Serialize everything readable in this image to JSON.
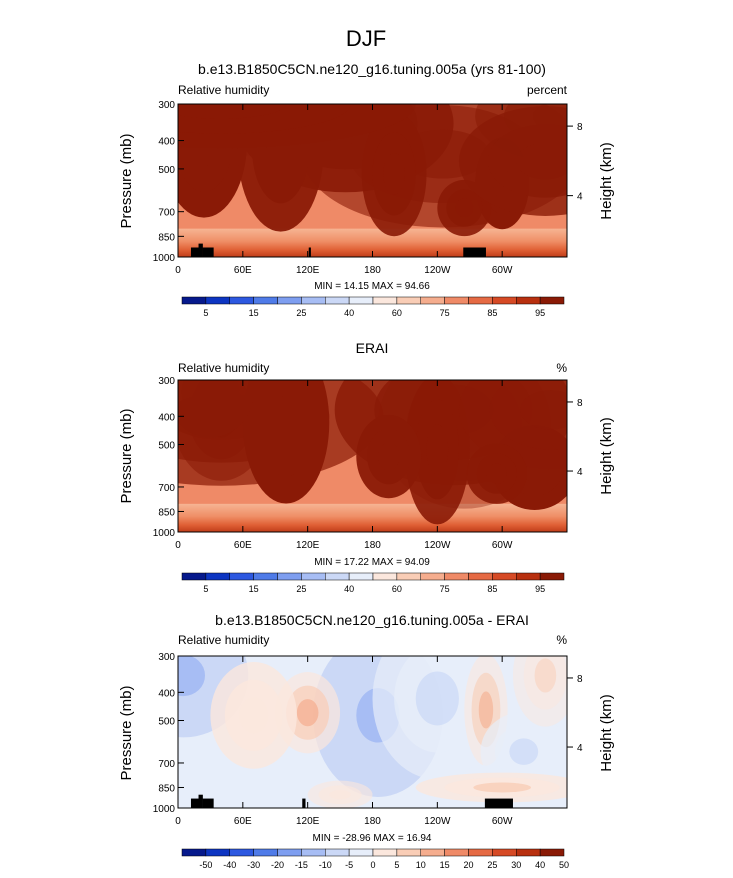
{
  "figure": {
    "title": "DJF"
  },
  "chart_data": [
    {
      "type": "heatmap",
      "title": "b.e13.B1850C5CN.ne120_g16.tuning.005a (yrs 81-100)",
      "left_label": "Relative humidity",
      "right_label": "percent",
      "ylabel": "Pressure (mb)",
      "ylabel_right": "Height (km)",
      "x_ticks": [
        "0",
        "60E",
        "120E",
        "180",
        "120W",
        "60W"
      ],
      "x_tick_positions": [
        0,
        60,
        120,
        180,
        240,
        300
      ],
      "xlim": [
        0,
        360
      ],
      "y_ticks": [
        "300",
        "400",
        "500",
        "700",
        "850",
        "1000"
      ],
      "y_tick_values": [
        300,
        400,
        500,
        700,
        850,
        1000
      ],
      "ylim": [
        300,
        1000
      ],
      "y_scale": "log",
      "right_ticks": [
        "8",
        "4"
      ],
      "right_tick_pressures": [
        357,
        617
      ],
      "stats": "MIN = 14.15  MAX = 94.66",
      "colorbar": {
        "labels": [
          "5",
          "15",
          "25",
          "40",
          "60",
          "75",
          "85",
          "95"
        ],
        "colors": [
          "#06198c",
          "#0d35c2",
          "#2d58e0",
          "#4f7be8",
          "#7e9ef0",
          "#a7bdf4",
          "#cbd8f6",
          "#e7eefa",
          "#fbe7dd",
          "#f9cdb6",
          "#f5ad8e",
          "#ef8a67",
          "#e56a44",
          "#d64a25",
          "#b8300f",
          "#8a1a06"
        ],
        "levels": [
          5,
          10,
          15,
          20,
          25,
          30,
          40,
          50,
          60,
          65,
          70,
          75,
          80,
          85,
          90,
          95
        ]
      },
      "terrain": [
        [
          12,
          23,
          928
        ],
        [
          19,
          23,
          900
        ],
        [
          23,
          33,
          928
        ],
        [
          121,
          123,
          928
        ],
        [
          264,
          285,
          928
        ]
      ],
      "terrain_levels": [
        928,
        900
      ],
      "field_base": 72,
      "lower_gradient": [
        [
          "#f6b493",
          0
        ],
        [
          "#ef8e66",
          0.45
        ],
        [
          "#e06035",
          0.75
        ],
        [
          "#c03d19",
          1
        ]
      ],
      "blobs": [
        [
          60,
          300,
          420,
          70,
          300,
          36
        ],
        [
          155,
          350,
          430,
          100,
          330,
          90
        ],
        [
          245,
          445,
          360,
          130,
          250,
          60
        ],
        [
          312,
          210,
          500,
          50,
          220,
          70
        ],
        [
          24,
          400,
          500,
          40,
          300,
          100
        ],
        [
          95,
          420,
          660,
          40,
          330,
          95
        ],
        [
          200,
          520,
          780,
          30,
          250,
          90
        ],
        [
          300,
          560,
          740,
          25,
          200,
          110
        ],
        [
          355,
          330,
          520,
          80,
          200,
          56
        ],
        [
          40,
          300,
          350,
          180,
          250,
          70
        ],
        [
          265,
          680,
          590,
          25,
          150,
          90
        ],
        [
          340,
          470,
          420,
          80,
          200,
          80
        ]
      ]
    },
    {
      "type": "heatmap",
      "title": "ERAI",
      "left_label": "Relative humidity",
      "right_label": "%",
      "ylabel": "Pressure (mb)",
      "ylabel_right": "Height (km)",
      "x_ticks": [
        "0",
        "60E",
        "120E",
        "180",
        "120W",
        "60W"
      ],
      "x_tick_positions": [
        0,
        60,
        120,
        180,
        240,
        300
      ],
      "xlim": [
        0,
        360
      ],
      "y_ticks": [
        "300",
        "400",
        "500",
        "700",
        "850",
        "1000"
      ],
      "y_tick_values": [
        300,
        400,
        500,
        700,
        850,
        1000
      ],
      "ylim": [
        300,
        1000
      ],
      "y_scale": "log",
      "right_ticks": [
        "8",
        "4"
      ],
      "right_tick_pressures": [
        357,
        617
      ],
      "stats": "MIN = 17.22  MAX = 94.09",
      "colorbar": {
        "labels": [
          "5",
          "15",
          "25",
          "40",
          "60",
          "75",
          "85",
          "95"
        ],
        "colors": [
          "#06198c",
          "#0d35c2",
          "#2d58e0",
          "#4f7be8",
          "#7e9ef0",
          "#a7bdf4",
          "#cbd8f6",
          "#e7eefa",
          "#fbe7dd",
          "#f9cdb6",
          "#f5ad8e",
          "#ef8a67",
          "#e56a44",
          "#d64a25",
          "#b8300f",
          "#8a1a06"
        ],
        "levels": [
          5,
          10,
          15,
          20,
          25,
          30,
          40,
          50,
          60,
          65,
          70,
          75,
          80,
          85,
          90,
          95
        ]
      },
      "terrain": [],
      "terrain_levels": [],
      "field_base": 72,
      "lower_gradient": [
        [
          "#f6b493",
          0
        ],
        [
          "#ef8e66",
          0.45
        ],
        [
          "#e06035",
          0.75
        ],
        [
          "#c03d19",
          1
        ]
      ],
      "blobs": [
        [
          265,
          430,
          440,
          80,
          300,
          36
        ],
        [
          255,
          380,
          380,
          110,
          330,
          80
        ],
        [
          240,
          520,
          600,
          30,
          300,
          90
        ],
        [
          330,
          600,
          640,
          40,
          200,
          110
        ],
        [
          40,
          400,
          420,
          45,
          200,
          56
        ],
        [
          40,
          400,
          380,
          150,
          240,
          70
        ],
        [
          100,
          420,
          700,
          40,
          300,
          100
        ],
        [
          195,
          550,
          700,
          30,
          180,
          95
        ],
        [
          30,
          330,
          620,
          40,
          200,
          60
        ],
        [
          345,
          380,
          500,
          85,
          200,
          62
        ],
        [
          295,
          630,
          460,
          28,
          150,
          90
        ]
      ]
    },
    {
      "type": "heatmap",
      "title": "b.e13.B1850C5CN.ne120_g16.tuning.005a - ERAI",
      "left_label": "Relative humidity",
      "right_label": "%",
      "ylabel": "Pressure (mb)",
      "ylabel_right": "Height (km)",
      "x_ticks": [
        "0",
        "60E",
        "120E",
        "180",
        "120W",
        "60W"
      ],
      "x_tick_positions": [
        0,
        60,
        120,
        180,
        240,
        300
      ],
      "xlim": [
        0,
        360
      ],
      "y_ticks": [
        "300",
        "400",
        "500",
        "700",
        "850",
        "1000"
      ],
      "y_tick_values": [
        300,
        400,
        500,
        700,
        850,
        1000
      ],
      "ylim": [
        300,
        1000
      ],
      "y_scale": "log",
      "right_ticks": [
        "8",
        "4"
      ],
      "right_tick_pressures": [
        357,
        617
      ],
      "stats": "MIN = -28.96  MAX = 16.94",
      "colorbar": {
        "labels": [
          "-50",
          "-40",
          "-30",
          "-20",
          "-15",
          "-10",
          "-5",
          "0",
          "5",
          "10",
          "15",
          "20",
          "25",
          "30",
          "40",
          "50"
        ],
        "colors": [
          "#06198c",
          "#0d35c2",
          "#2d58e0",
          "#4f7be8",
          "#7e9ef0",
          "#a7bdf4",
          "#cbd8f6",
          "#e7eefa",
          "#fbe7dd",
          "#f9cdb6",
          "#f5ad8e",
          "#ef8a67",
          "#e56a44",
          "#d64a25",
          "#b8300f",
          "#8a1a06"
        ],
        "levels": [
          -50,
          -40,
          -30,
          -20,
          -15,
          -10,
          -5,
          0,
          5,
          10,
          15,
          20,
          25,
          30,
          40,
          50
        ]
      },
      "terrain": [
        [
          12,
          23,
          928
        ],
        [
          19,
          23,
          900
        ],
        [
          23,
          33,
          928
        ],
        [
          115,
          118,
          928
        ],
        [
          284,
          310,
          928
        ]
      ],
      "terrain_levels": [
        928,
        900
      ],
      "field_base": -2,
      "lower_gradient": [],
      "blobs": [
        [
          10,
          340,
          -25,
          25,
          200,
          70
        ],
        [
          5,
          350,
          -12,
          60,
          280,
          100
        ],
        [
          185,
          480,
          -12,
          60,
          300,
          160
        ],
        [
          240,
          420,
          -6,
          60,
          300,
          70
        ],
        [
          120,
          470,
          12,
          30,
          150,
          70
        ],
        [
          285,
          460,
          13,
          20,
          200,
          60
        ],
        [
          320,
          640,
          -6,
          40,
          200,
          70
        ],
        [
          340,
          350,
          6,
          30,
          200,
          50
        ],
        [
          70,
          480,
          5,
          40,
          200,
          80
        ],
        [
          300,
          850,
          6,
          80,
          100,
          80
        ],
        [
          150,
          900,
          4,
          30,
          100,
          60
        ]
      ]
    }
  ]
}
